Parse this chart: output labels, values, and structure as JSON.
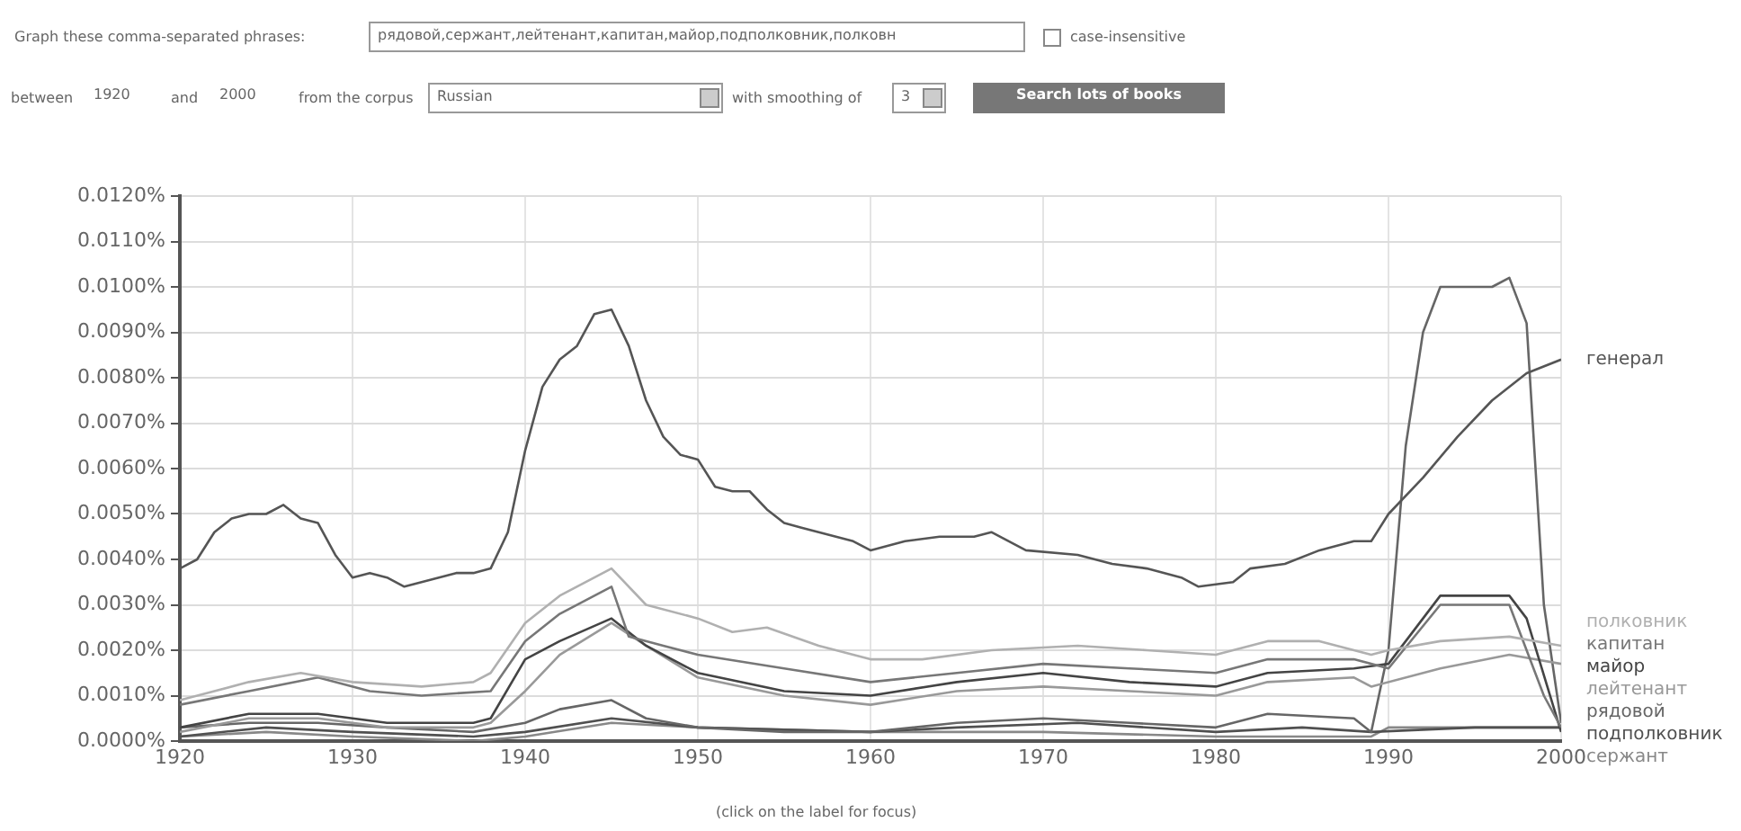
{
  "chart_data": {
    "type": "line",
    "annotations": [
      "Graph these comma-separated phrases:",
      "рядовой,сержант,лейтенант,капитан,майор,подполковник,полковн",
      "case-insensitive",
      "between",
      "1920",
      "and",
      "2000",
      "from the corpus",
      "Russian",
      "with smoothing of",
      "3",
      "Search lots of books",
      "(click on the label for focus)"
    ],
    "xlim": [
      1920,
      2000
    ],
    "xticks": [
      1920,
      1930,
      1940,
      1950,
      1960,
      1970,
      1980,
      1990,
      2000
    ],
    "ylim": [
      0,
      0.012
    ],
    "yticks": [
      {
        "value": 0,
        "label": "0.0000%"
      },
      {
        "value": 0.001,
        "label": "0.0010%"
      },
      {
        "value": 0.002,
        "label": "0.0020%"
      },
      {
        "value": 0.003,
        "label": "0.0030%"
      },
      {
        "value": 0.004,
        "label": "0.0040%"
      },
      {
        "value": 0.005,
        "label": "0.0050%"
      },
      {
        "value": 0.006,
        "label": "0.0060%"
      },
      {
        "value": 0.007,
        "label": "0.0070%"
      },
      {
        "value": 0.008,
        "label": "0.0080%"
      },
      {
        "value": 0.009,
        "label": "0.0090%"
      },
      {
        "value": 0.01,
        "label": "0.0100%"
      },
      {
        "value": 0.011,
        "label": "0.0110%"
      },
      {
        "value": 0.012,
        "label": "0.0120%"
      }
    ],
    "grid": true,
    "marker": "none",
    "line_style": "solid",
    "series": [
      {
        "name": "генерал",
        "color": "#555555",
        "x": [
          1920,
          1921,
          1922,
          1923,
          1924,
          1925,
          1926,
          1927,
          1928,
          1929,
          1930,
          1931,
          1932,
          1933,
          1934,
          1935,
          1936,
          1937,
          1938,
          1939,
          1940,
          1941,
          1942,
          1943,
          1944,
          1945,
          1946,
          1947,
          1948,
          1949,
          1950,
          1951,
          1952,
          1953,
          1954,
          1955,
          1956,
          1957,
          1958,
          1959,
          1960,
          1962,
          1964,
          1966,
          1967,
          1969,
          1972,
          1974,
          1976,
          1978,
          1979,
          1981,
          1982,
          1984,
          1986,
          1988,
          1989,
          1990,
          1992,
          1994,
          1996,
          1998,
          2000
        ],
        "values": [
          0.0038,
          0.004,
          0.0046,
          0.0049,
          0.005,
          0.005,
          0.0052,
          0.0049,
          0.0048,
          0.0041,
          0.0036,
          0.0037,
          0.0036,
          0.0034,
          0.0035,
          0.0036,
          0.0037,
          0.0037,
          0.0038,
          0.0046,
          0.0064,
          0.0078,
          0.0084,
          0.0087,
          0.0094,
          0.0095,
          0.0087,
          0.0075,
          0.0067,
          0.0063,
          0.0062,
          0.0056,
          0.0055,
          0.0055,
          0.0051,
          0.0048,
          0.0047,
          0.0046,
          0.0045,
          0.0044,
          0.0042,
          0.0044,
          0.0045,
          0.0045,
          0.0046,
          0.0042,
          0.0041,
          0.0039,
          0.0038,
          0.0036,
          0.0034,
          0.0035,
          0.0038,
          0.0039,
          0.0042,
          0.0044,
          0.0044,
          0.005,
          0.0058,
          0.0067,
          0.0075,
          0.0081,
          0.0084
        ]
      },
      {
        "name": "полковник",
        "color": "#b0b0b0",
        "x": [
          1920,
          1924,
          1927,
          1930,
          1934,
          1937,
          1938,
          1940,
          1942,
          1945,
          1947,
          1950,
          1952,
          1954,
          1957,
          1960,
          1963,
          1967,
          1972,
          1976,
          1980,
          1983,
          1986,
          1989,
          1990,
          1993,
          1997,
          2000
        ],
        "values": [
          0.0009,
          0.0013,
          0.0015,
          0.0013,
          0.0012,
          0.0013,
          0.0015,
          0.0026,
          0.0032,
          0.0038,
          0.003,
          0.0027,
          0.0024,
          0.0025,
          0.0021,
          0.0018,
          0.0018,
          0.002,
          0.0021,
          0.002,
          0.0019,
          0.0022,
          0.0022,
          0.0019,
          0.002,
          0.0022,
          0.0023,
          0.0021
        ]
      },
      {
        "name": "капитан",
        "color": "#777777",
        "x": [
          1920,
          1924,
          1928,
          1931,
          1934,
          1938,
          1940,
          1942,
          1945,
          1946,
          1948,
          1950,
          1955,
          1960,
          1965,
          1970,
          1975,
          1980,
          1983,
          1988,
          1990,
          1993,
          1997,
          1999,
          2000
        ],
        "values": [
          0.0008,
          0.0011,
          0.0014,
          0.0011,
          0.001,
          0.0011,
          0.0022,
          0.0028,
          0.0034,
          0.0023,
          0.0021,
          0.0019,
          0.0016,
          0.0013,
          0.0015,
          0.0017,
          0.0016,
          0.0015,
          0.0018,
          0.0018,
          0.0016,
          0.003,
          0.003,
          0.001,
          0.0003
        ]
      },
      {
        "name": "майор",
        "color": "#444444",
        "x": [
          1920,
          1924,
          1928,
          1932,
          1937,
          1938,
          1940,
          1942,
          1945,
          1947,
          1950,
          1955,
          1960,
          1965,
          1970,
          1975,
          1980,
          1983,
          1988,
          1990,
          1993,
          1997,
          1998,
          2000
        ],
        "values": [
          0.0003,
          0.0006,
          0.0006,
          0.0004,
          0.0004,
          0.0005,
          0.0018,
          0.0022,
          0.0027,
          0.0021,
          0.0015,
          0.0011,
          0.001,
          0.0013,
          0.0015,
          0.0013,
          0.0012,
          0.0015,
          0.0016,
          0.0017,
          0.0032,
          0.0032,
          0.0027,
          0.0002
        ]
      },
      {
        "name": "лейтенант",
        "color": "#999999",
        "x": [
          1920,
          1924,
          1928,
          1932,
          1937,
          1938,
          1940,
          1942,
          1945,
          1947,
          1950,
          1955,
          1960,
          1965,
          1970,
          1975,
          1980,
          1983,
          1988,
          1989,
          1993,
          1997,
          2000
        ],
        "values": [
          0.0002,
          0.0005,
          0.0005,
          0.0003,
          0.0003,
          0.0004,
          0.0011,
          0.0019,
          0.0026,
          0.0021,
          0.0014,
          0.001,
          0.0008,
          0.0011,
          0.0012,
          0.0011,
          0.001,
          0.0013,
          0.0014,
          0.0012,
          0.0016,
          0.0019,
          0.0017
        ]
      },
      {
        "name": "рядовой",
        "color": "#666666",
        "x": [
          1920,
          1924,
          1928,
          1932,
          1937,
          1940,
          1942,
          1945,
          1947,
          1950,
          1955,
          1960,
          1965,
          1970,
          1975,
          1980,
          1983,
          1988,
          1989,
          1990,
          1991,
          1992,
          1993,
          1996,
          1997,
          1998,
          1999,
          2000
        ],
        "values": [
          0.0003,
          0.0004,
          0.0004,
          0.0003,
          0.0002,
          0.0004,
          0.0007,
          0.0009,
          0.0005,
          0.0003,
          0.0002,
          0.0002,
          0.0004,
          0.0005,
          0.0004,
          0.0003,
          0.0006,
          0.0005,
          0.0002,
          0.002,
          0.0065,
          0.009,
          0.01,
          0.01,
          0.0102,
          0.0092,
          0.003,
          0.0004
        ]
      },
      {
        "name": "подполковник",
        "color": "#505050",
        "x": [
          1920,
          1925,
          1930,
          1937,
          1940,
          1945,
          1950,
          1960,
          1965,
          1972,
          1980,
          1985,
          1989,
          1995,
          2000
        ],
        "values": [
          0.0001,
          0.0003,
          0.0002,
          0.0001,
          0.0002,
          0.0005,
          0.0003,
          0.0002,
          0.0003,
          0.0004,
          0.0002,
          0.0003,
          0.0002,
          0.0003,
          0.0003
        ]
      },
      {
        "name": "сержант",
        "color": "#888888",
        "x": [
          1920,
          1925,
          1930,
          1937,
          1940,
          1945,
          1950,
          1960,
          1970,
          1980,
          1989,
          1990,
          2000
        ],
        "values": [
          0.0001,
          0.0002,
          0.0001,
          0,
          0.0001,
          0.0004,
          0.0003,
          0.0002,
          0.0002,
          0.0001,
          0.0001,
          0.0003,
          0.0003
        ]
      }
    ]
  }
}
